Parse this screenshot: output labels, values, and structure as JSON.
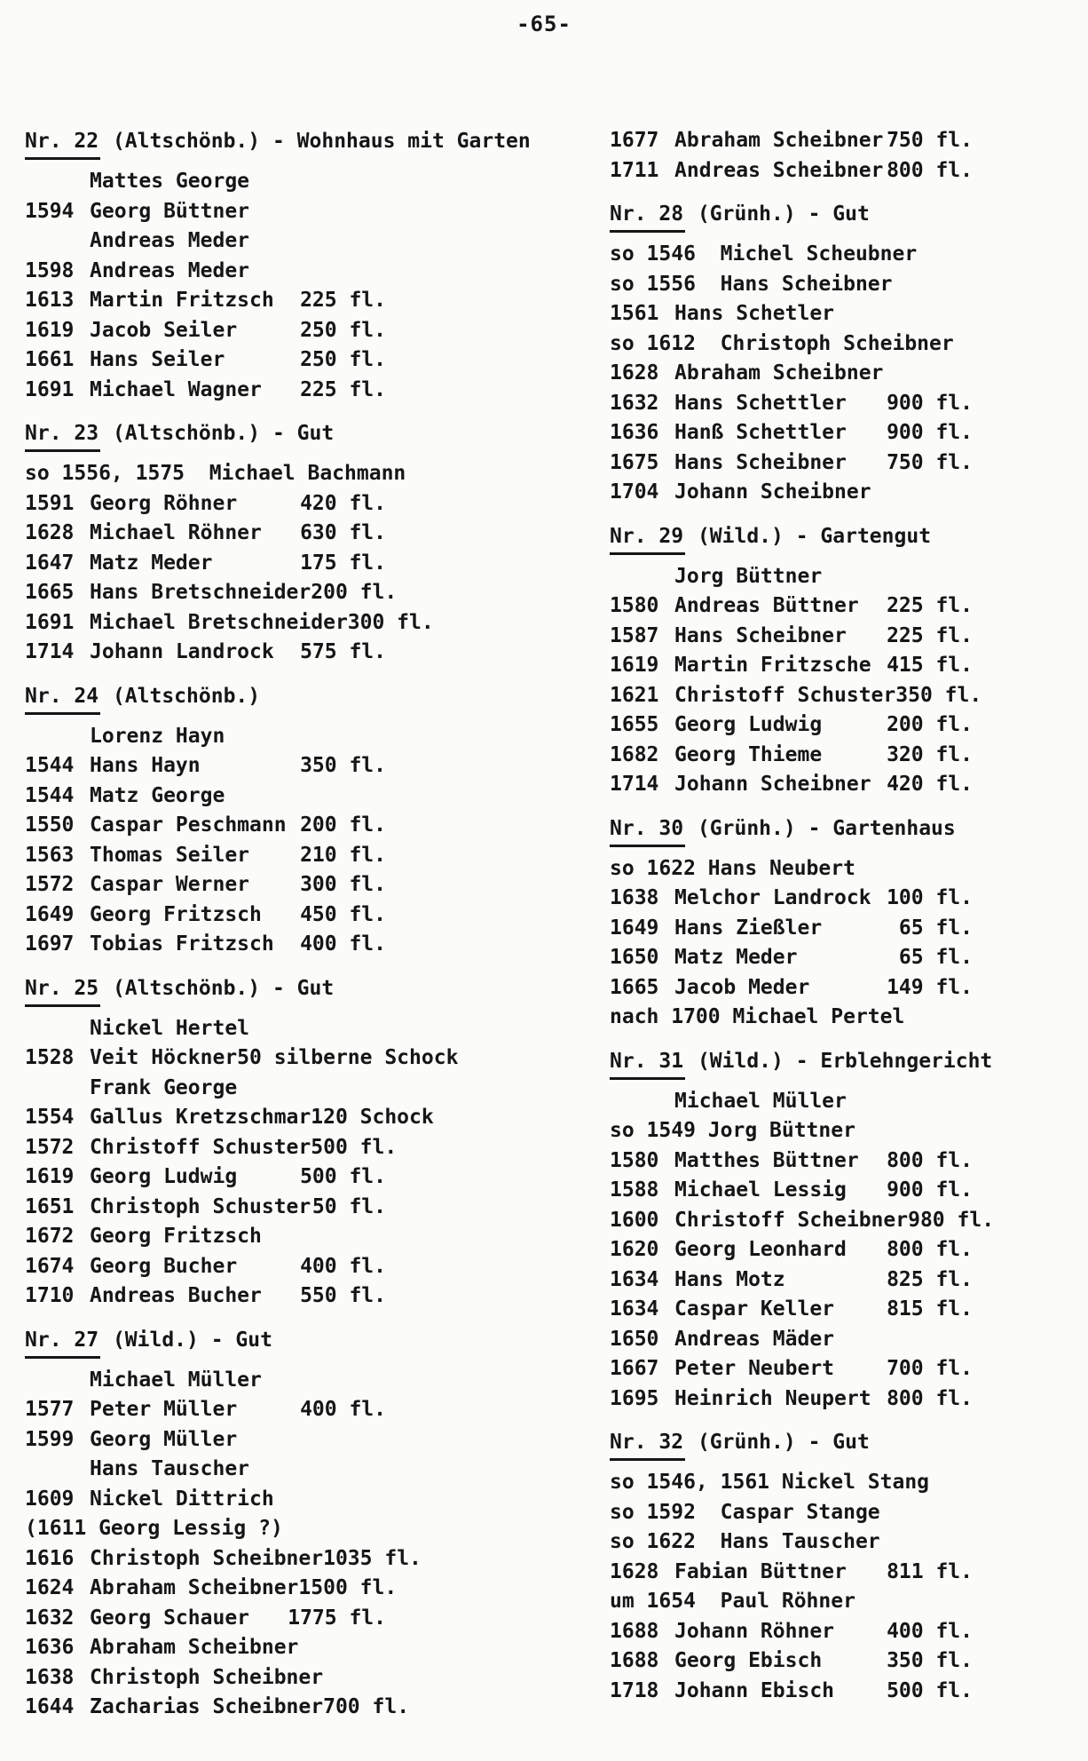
{
  "page": {
    "number": "-65-"
  },
  "columns": {
    "left": {
      "sections": [
        {
          "title": {
            "nr": "Nr. 22",
            "rest": " (Altschönb.) - Wohnhaus mit Garten"
          },
          "rows": [
            {
              "year": "",
              "name": "Mattes George",
              "amount": ""
            },
            {
              "year": "1594",
              "name": "Georg Büttner",
              "amount": ""
            },
            {
              "year": "",
              "name": "Andreas Meder",
              "amount": ""
            },
            {
              "year": "1598",
              "name": "Andreas Meder",
              "amount": ""
            },
            {
              "year": "1613",
              "name": "Martin Fritzsch",
              "amount": "225 fl."
            },
            {
              "year": "1619",
              "name": "Jacob Seiler",
              "amount": "250 fl."
            },
            {
              "year": "1661",
              "name": "Hans Seiler",
              "amount": "250 fl."
            },
            {
              "year": "1691",
              "name": "Michael Wagner",
              "amount": "225 fl."
            }
          ]
        },
        {
          "title": {
            "nr": "Nr. 23",
            "rest": " (Altschönb.) - Gut"
          },
          "rows": [
            {
              "note": "so 1556, 1575  Michael Bachmann"
            },
            {
              "year": "1591",
              "name": "Georg Röhner",
              "amount": "420 fl."
            },
            {
              "year": "1628",
              "name": "Michael Röhner",
              "amount": "630 fl."
            },
            {
              "year": "1647",
              "name": "Matz Meder",
              "amount": "175 fl."
            },
            {
              "year": "1665",
              "name": "Hans Bretschneider",
              "amount": "200 fl."
            },
            {
              "year": "1691",
              "name": "Michael Bretschneider",
              "amount": "300 fl."
            },
            {
              "year": "1714",
              "name": "Johann Landrock",
              "amount": "575 fl."
            }
          ]
        },
        {
          "title": {
            "nr": "Nr. 24",
            "rest": " (Altschönb.)"
          },
          "rows": [
            {
              "year": "",
              "name": "Lorenz Hayn",
              "amount": ""
            },
            {
              "year": "1544",
              "name": "Hans Hayn",
              "amount": "350 fl."
            },
            {
              "year": "1544",
              "name": "Matz George",
              "amount": ""
            },
            {
              "year": "1550",
              "name": "Caspar Peschmann",
              "amount": "200 fl."
            },
            {
              "year": "1563",
              "name": "Thomas Seiler",
              "amount": "210 fl."
            },
            {
              "year": "1572",
              "name": "Caspar Werner",
              "amount": "300 fl."
            },
            {
              "year": "1649",
              "name": "Georg Fritzsch",
              "amount": "450 fl."
            },
            {
              "year": "1697",
              "name": "Tobias Fritzsch",
              "amount": "400 fl."
            }
          ]
        },
        {
          "title": {
            "nr": "Nr. 25",
            "rest": " (Altschönb.) - Gut"
          },
          "rows": [
            {
              "year": "",
              "name": "Nickel Hertel",
              "amount": ""
            },
            {
              "year": "1528",
              "name": "Veit Höckner",
              "amount": "50 silberne Schock"
            },
            {
              "year": "",
              "name": "Frank George",
              "amount": ""
            },
            {
              "year": "1554",
              "name": "Gallus Kretzschmar",
              "amount": "120 Schock"
            },
            {
              "year": "1572",
              "name": "Christoff Schuster",
              "amount": "500 fl."
            },
            {
              "year": "1619",
              "name": "Georg Ludwig",
              "amount": "500 fl."
            },
            {
              "year": "1651",
              "name": "Christoph Schuster",
              "amount": "50 fl."
            },
            {
              "year": "1672",
              "name": "Georg Fritzsch",
              "amount": ""
            },
            {
              "year": "1674",
              "name": "Georg Bucher",
              "amount": "400 fl."
            },
            {
              "year": "1710",
              "name": "Andreas Bucher",
              "amount": "550 fl."
            }
          ]
        },
        {
          "title": {
            "nr": "Nr. 27",
            "rest": " (Wild.) - Gut"
          },
          "rows": [
            {
              "year": "",
              "name": "Michael Müller",
              "amount": ""
            },
            {
              "year": "1577",
              "name": "Peter Müller",
              "amount": "400 fl."
            },
            {
              "year": "1599",
              "name": "Georg Müller",
              "amount": ""
            },
            {
              "year": "",
              "name": "Hans Tauscher",
              "amount": ""
            },
            {
              "year": "1609",
              "name": "Nickel Dittrich",
              "amount": ""
            },
            {
              "note": "(1611 Georg Lessig ?)"
            },
            {
              "year": "1616",
              "name": "Christoph Scheibner",
              "amount": "1035 fl."
            },
            {
              "year": "1624",
              "name": "Abraham Scheibner",
              "amount": "1500 fl."
            },
            {
              "year": "1632",
              "name": "Georg Schauer",
              "amount": "1775 fl."
            },
            {
              "year": "1636",
              "name": "Abraham Scheibner",
              "amount": ""
            },
            {
              "year": "1638",
              "name": "Christoph Scheibner",
              "amount": ""
            },
            {
              "year": "1644",
              "name": "Zacharias Scheibner",
              "amount": "700 fl."
            }
          ]
        }
      ]
    },
    "right": {
      "sections": [
        {
          "title": null,
          "rows": [
            {
              "year": "1677",
              "name": "Abraham Scheibner",
              "amount": "750 fl."
            },
            {
              "year": "1711",
              "name": "Andreas Scheibner",
              "amount": "800 fl."
            }
          ]
        },
        {
          "title": {
            "nr": "Nr. 28",
            "rest": " (Grünh.) - Gut"
          },
          "rows": [
            {
              "note": "so 1546  Michel Scheubner"
            },
            {
              "note": "so 1556  Hans Scheibner"
            },
            {
              "year": "1561",
              "name": "Hans Schetler",
              "amount": ""
            },
            {
              "note": "so 1612  Christoph Scheibner"
            },
            {
              "year": "1628",
              "name": "Abraham Scheibner",
              "amount": ""
            },
            {
              "year": "1632",
              "name": "Hans Schettler",
              "amount": "900 fl."
            },
            {
              "year": "1636",
              "name": "Hanß Schettler",
              "amount": "900 fl."
            },
            {
              "year": "1675",
              "name": "Hans Scheibner",
              "amount": "750 fl."
            },
            {
              "year": "1704",
              "name": "Johann Scheibner",
              "amount": ""
            }
          ]
        },
        {
          "title": {
            "nr": "Nr. 29",
            "rest": " (Wild.) - Gartengut"
          },
          "rows": [
            {
              "year": "",
              "name": "Jorg Büttner",
              "amount": ""
            },
            {
              "year": "1580",
              "name": "Andreas Büttner",
              "amount": "225 fl."
            },
            {
              "year": "1587",
              "name": "Hans Scheibner",
              "amount": "225 fl."
            },
            {
              "year": "1619",
              "name": "Martin Fritzsche",
              "amount": "415 fl."
            },
            {
              "year": "1621",
              "name": "Christoff Schuster",
              "amount": "350 fl."
            },
            {
              "year": "1655",
              "name": "Georg Ludwig",
              "amount": "200 fl."
            },
            {
              "year": "1682",
              "name": "Georg Thieme",
              "amount": "320 fl."
            },
            {
              "year": "1714",
              "name": "Johann Scheibner",
              "amount": "420 fl."
            }
          ]
        },
        {
          "title": {
            "nr": "Nr. 30",
            "rest": " (Grünh.) - Gartenhaus"
          },
          "rows": [
            {
              "note": "so 1622 Hans Neubert"
            },
            {
              "year": "1638",
              "name": "Melchor Landrock",
              "amount": "100 fl."
            },
            {
              "year": "1649",
              "name": "Hans Zießler",
              "amount": "65 fl."
            },
            {
              "year": "1650",
              "name": "Matz Meder",
              "amount": "65 fl."
            },
            {
              "year": "1665",
              "name": "Jacob Meder",
              "amount": "149 fl."
            },
            {
              "note": "nach 1700 Michael Pertel"
            }
          ]
        },
        {
          "title": {
            "nr": "Nr. 31",
            "rest": " (Wild.) - Erblehngericht"
          },
          "rows": [
            {
              "year": "",
              "name": "Michael Müller",
              "amount": ""
            },
            {
              "note": "so 1549 Jorg Büttner"
            },
            {
              "year": "1580",
              "name": "Matthes Büttner",
              "amount": "800 fl."
            },
            {
              "year": "1588",
              "name": "Michael Lessig",
              "amount": "900 fl."
            },
            {
              "year": "1600",
              "name": "Christoff Scheibner",
              "amount": "980 fl."
            },
            {
              "year": "1620",
              "name": "Georg Leonhard",
              "amount": "800 fl."
            },
            {
              "year": "1634",
              "name": "Hans Motz",
              "amount": "825 fl."
            },
            {
              "year": "1634",
              "name": "Caspar Keller",
              "amount": "815 fl."
            },
            {
              "year": "1650",
              "name": "Andreas Mäder",
              "amount": ""
            },
            {
              "year": "1667",
              "name": "Peter Neubert",
              "amount": "700 fl."
            },
            {
              "year": "1695",
              "name": "Heinrich Neupert",
              "amount": "800 fl."
            }
          ]
        },
        {
          "title": {
            "nr": "Nr. 32",
            "rest": " (Grünh.) - Gut"
          },
          "rows": [
            {
              "note": "so 1546, 1561 Nickel Stang"
            },
            {
              "note": "so 1592  Caspar Stange"
            },
            {
              "note": "so 1622  Hans Tauscher"
            },
            {
              "year": "1628",
              "name": "Fabian Büttner",
              "amount": "811 fl."
            },
            {
              "note": "um 1654  Paul Röhner"
            },
            {
              "year": "1688",
              "name": "Johann Röhner",
              "amount": "400 fl."
            },
            {
              "year": "1688",
              "name": "Georg Ebisch",
              "amount": "350 fl."
            },
            {
              "year": "1718",
              "name": "Johann Ebisch",
              "amount": "500 fl."
            }
          ]
        }
      ]
    }
  }
}
